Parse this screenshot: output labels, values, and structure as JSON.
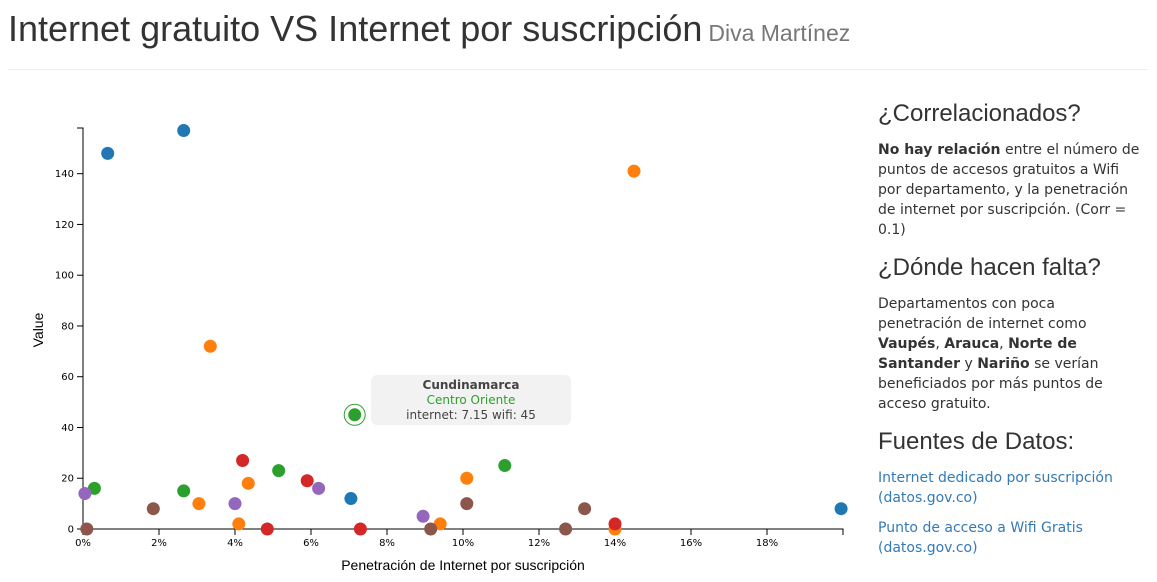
{
  "header": {
    "title": "Internet gratuito VS Internet por suscripción",
    "author": "Diva Martínez"
  },
  "chart_data": {
    "type": "scatter",
    "title": "Internet gratuito VS Internet por suscripción",
    "xlabel": "Penetración de Internet por suscripción",
    "ylabel": "Value",
    "xlim": [
      0,
      0.2
    ],
    "ylim": [
      0,
      158
    ],
    "x_ticks": [
      "0%",
      "2%",
      "4%",
      "6%",
      "8%",
      "10%",
      "12%",
      "14%",
      "16%",
      "18%"
    ],
    "y_ticks": [
      "0",
      "20",
      "40",
      "60",
      "80",
      "100",
      "120",
      "140"
    ],
    "colors": {
      "blue": "#1f77b4",
      "orange": "#ff7f0e",
      "green": "#2ca02c",
      "red": "#d62728",
      "purple": "#9467bd",
      "brown": "#8c564b"
    },
    "points": [
      {
        "x": 0.0065,
        "y": 148,
        "c": "blue"
      },
      {
        "x": 0.0265,
        "y": 157,
        "c": "blue"
      },
      {
        "x": 0.0705,
        "y": 12,
        "c": "blue"
      },
      {
        "x": 0.1995,
        "y": 8,
        "c": "blue"
      },
      {
        "x": 0.145,
        "y": 141,
        "c": "orange"
      },
      {
        "x": 0.0335,
        "y": 72,
        "c": "orange"
      },
      {
        "x": 0.0435,
        "y": 18,
        "c": "orange"
      },
      {
        "x": 0.0305,
        "y": 10,
        "c": "orange"
      },
      {
        "x": 0.041,
        "y": 2,
        "c": "orange"
      },
      {
        "x": 0.101,
        "y": 20,
        "c": "orange"
      },
      {
        "x": 0.094,
        "y": 2,
        "c": "orange"
      },
      {
        "x": 0.14,
        "y": 0,
        "c": "orange"
      },
      {
        "x": 0.003,
        "y": 16,
        "c": "green"
      },
      {
        "x": 0.0265,
        "y": 15,
        "c": "green"
      },
      {
        "x": 0.0515,
        "y": 23,
        "c": "green"
      },
      {
        "x": 0.0715,
        "y": 45,
        "c": "green",
        "highlight": true
      },
      {
        "x": 0.111,
        "y": 25,
        "c": "green"
      },
      {
        "x": 0.042,
        "y": 27,
        "c": "red"
      },
      {
        "x": 0.059,
        "y": 19,
        "c": "red"
      },
      {
        "x": 0.0485,
        "y": 0,
        "c": "red"
      },
      {
        "x": 0.073,
        "y": 0,
        "c": "red"
      },
      {
        "x": 0.14,
        "y": 2,
        "c": "red"
      },
      {
        "x": 0.0005,
        "y": 14,
        "c": "purple"
      },
      {
        "x": 0.04,
        "y": 10,
        "c": "purple"
      },
      {
        "x": 0.062,
        "y": 16,
        "c": "purple"
      },
      {
        "x": 0.0895,
        "y": 5,
        "c": "purple"
      },
      {
        "x": 0.001,
        "y": 0,
        "c": "brown"
      },
      {
        "x": 0.0185,
        "y": 8,
        "c": "brown"
      },
      {
        "x": 0.0915,
        "y": 0,
        "c": "brown"
      },
      {
        "x": 0.101,
        "y": 10,
        "c": "brown"
      },
      {
        "x": 0.127,
        "y": 0,
        "c": "brown"
      },
      {
        "x": 0.132,
        "y": 8,
        "c": "brown"
      }
    ],
    "tooltip": {
      "name": "Cundinamarca",
      "region": "Centro Oriente",
      "values": "internet: 7.15 wifi: 45"
    }
  },
  "sidebar": {
    "sections": [
      {
        "heading": "¿Correlacionados?",
        "bold": "No hay relación",
        "text": " entre el número de puntos de accesos gratuitos a Wifi por departamento, y la penetración de internet por suscripción. (Corr = 0.1)"
      },
      {
        "heading": "¿Dónde hacen falta?",
        "pre": "Departamentos con poca penetración de internet como ",
        "b1": "Vaupés",
        "sep1": ", ",
        "b2": "Arauca",
        "sep2": ", ",
        "b3": "Norte de Santander",
        "sep3": " y ",
        "b4": "Nariño",
        "post": " se verían beneficiados por más puntos de acceso gratuito."
      }
    ],
    "sources": {
      "heading": "Fuentes de Datos:",
      "links": [
        "Internet dedicado por suscripción (datos.gov.co)",
        "Punto de acceso a Wifi Gratis (datos.gov.co)"
      ]
    }
  }
}
